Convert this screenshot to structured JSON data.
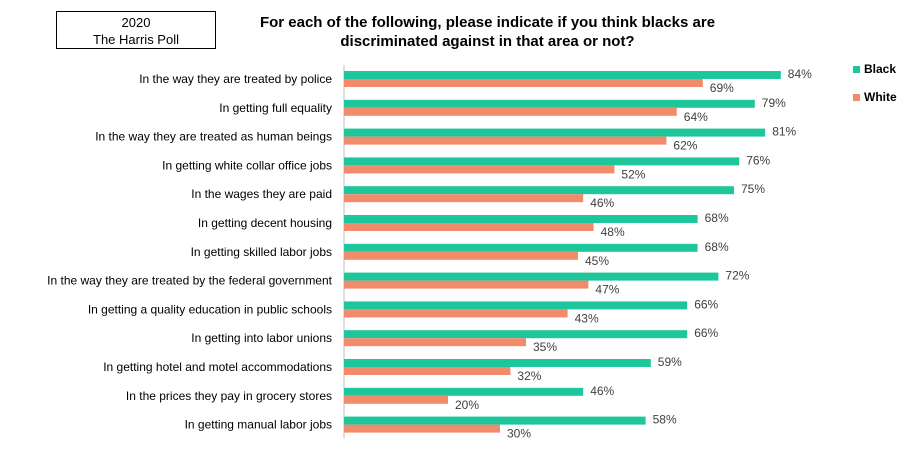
{
  "header": {
    "source_year": "2020",
    "source_name": "The Harris Poll",
    "title_line1": "For each of the following, please indicate if you think blacks are",
    "title_line2": "discriminated against in that area or not?"
  },
  "chart_data": {
    "type": "bar",
    "orientation": "horizontal",
    "title": "For each of the following, please indicate if you think blacks are discriminated against in that area or not?",
    "categories": [
      "In the way they are treated by police",
      "In getting full equality",
      "In the way they are treated as human beings",
      "In getting white collar office jobs",
      "In the wages they are paid",
      "In getting decent housing",
      "In getting skilled labor jobs",
      "In the way they are treated by the federal government",
      "In getting a quality education in public schools",
      "In getting into labor unions",
      "In getting hotel and motel accommodations",
      "In the prices they pay in grocery stores",
      "In getting manual labor jobs"
    ],
    "series": [
      {
        "name": "Black",
        "color": "#1ec79b",
        "values": [
          84,
          79,
          81,
          76,
          75,
          68,
          68,
          72,
          66,
          66,
          59,
          46,
          58
        ]
      },
      {
        "name": "White",
        "color": "#f28b6b",
        "values": [
          69,
          64,
          62,
          52,
          46,
          48,
          45,
          47,
          43,
          35,
          32,
          20,
          30
        ]
      }
    ],
    "value_suffix": "%",
    "xlim": [
      0,
      100
    ],
    "legend_position": "right",
    "grid": false
  }
}
